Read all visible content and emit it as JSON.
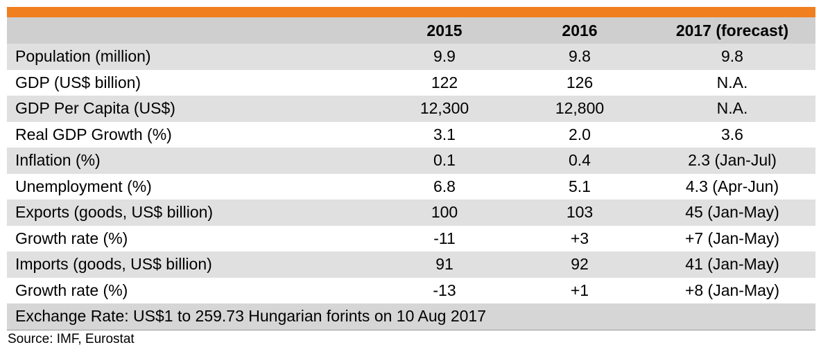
{
  "table": {
    "headers": [
      "",
      "2015",
      "2016",
      "2017 (forecast)"
    ],
    "rows": [
      [
        "Population (million)",
        "9.9",
        "9.8",
        "9.8"
      ],
      [
        "GDP (US$ billion)",
        "122",
        "126",
        "N.A."
      ],
      [
        "GDP Per Capita (US$)",
        "12,300",
        "12,800",
        "N.A."
      ],
      [
        "Real GDP Growth (%)",
        "3.1",
        "2.0",
        "3.6"
      ],
      [
        "Inflation (%)",
        "0.1",
        "0.4",
        "2.3 (Jan-Jul)"
      ],
      [
        "Unemployment (%)",
        "6.8",
        "5.1",
        "4.3 (Apr-Jun)"
      ],
      [
        "Exports (goods, US$ billion)",
        "100",
        "103",
        "45 (Jan-May)"
      ],
      [
        "Growth rate (%)",
        "-11",
        "+3",
        "+7 (Jan-May)"
      ],
      [
        "Imports (goods, US$ billion)",
        "91",
        "92",
        "41 (Jan-May)"
      ],
      [
        "Growth rate (%)",
        "-13",
        "+1",
        "+8 (Jan-May)"
      ]
    ],
    "footer": "Exchange Rate: US$1 to 259.73 Hungarian forints on 10 Aug 2017"
  },
  "source": "Source: IMF, Eurostat",
  "colors": {
    "accent_bar": "#f07f1f",
    "header_bg": "#cfcfcf",
    "shaded_row": "#e0e0e0"
  }
}
